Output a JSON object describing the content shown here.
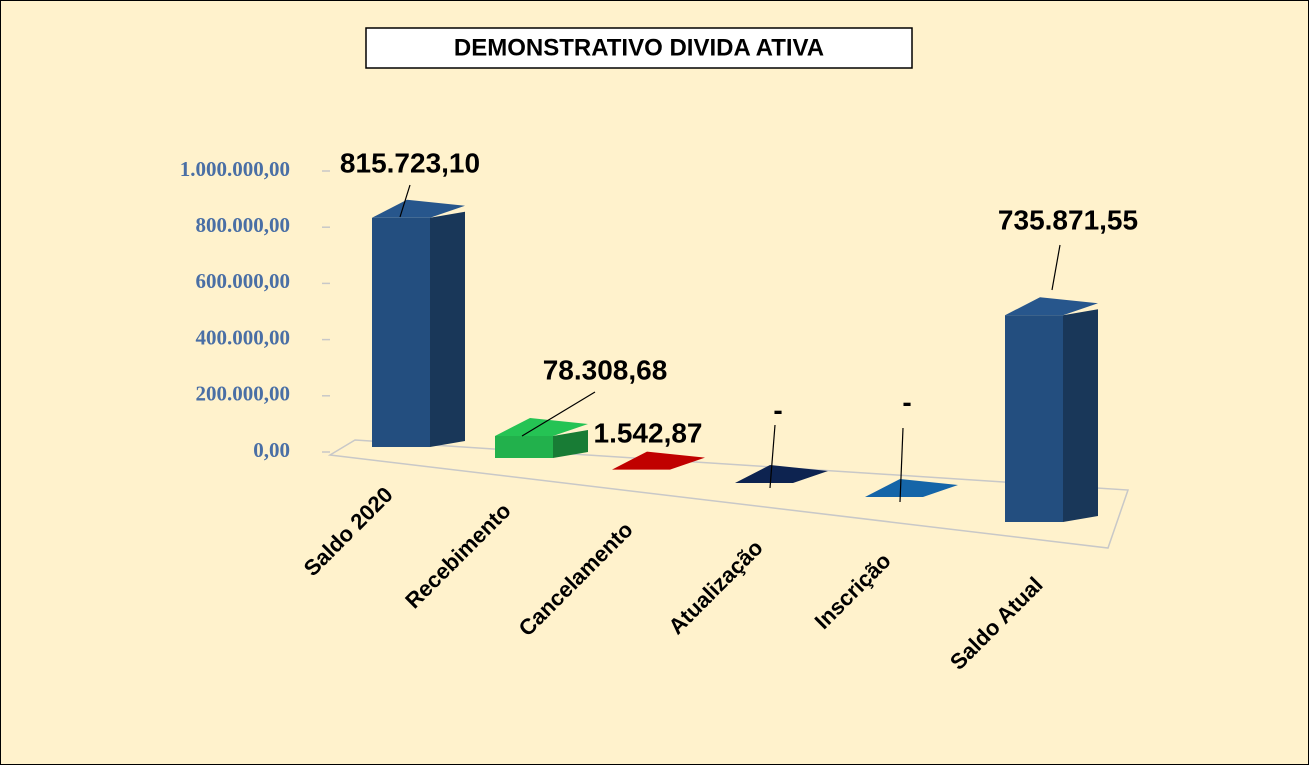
{
  "chart_data": {
    "type": "bar3d",
    "title": "DEMONSTRATIVO DIVIDA ATIVA",
    "categories": [
      "Saldo 2020",
      "Recebimento",
      "Cancelamento",
      "Atualização",
      "Inscrição",
      "Saldo Atual"
    ],
    "values": [
      815723.1,
      78308.68,
      1542.87,
      0,
      0,
      735871.55
    ],
    "value_labels": [
      "815.723,10",
      "78.308,68",
      "1.542,87",
      "-",
      "-",
      "735.871,55"
    ],
    "colors": [
      "#234e7f",
      "#22b14c",
      "#c00000",
      "#0d2350",
      "#1565a8",
      "#234e7f"
    ],
    "ylim": [
      0,
      1000000
    ],
    "yticks": [
      {
        "value": 0,
        "label": "0,00"
      },
      {
        "value": 200000,
        "label": "200.000,00"
      },
      {
        "value": 400000,
        "label": "400.000,00"
      },
      {
        "value": 600000,
        "label": "600.000,00"
      },
      {
        "value": 800000,
        "label": "800.000,00"
      },
      {
        "value": 1000000,
        "label": "1.000.000,00"
      }
    ]
  }
}
